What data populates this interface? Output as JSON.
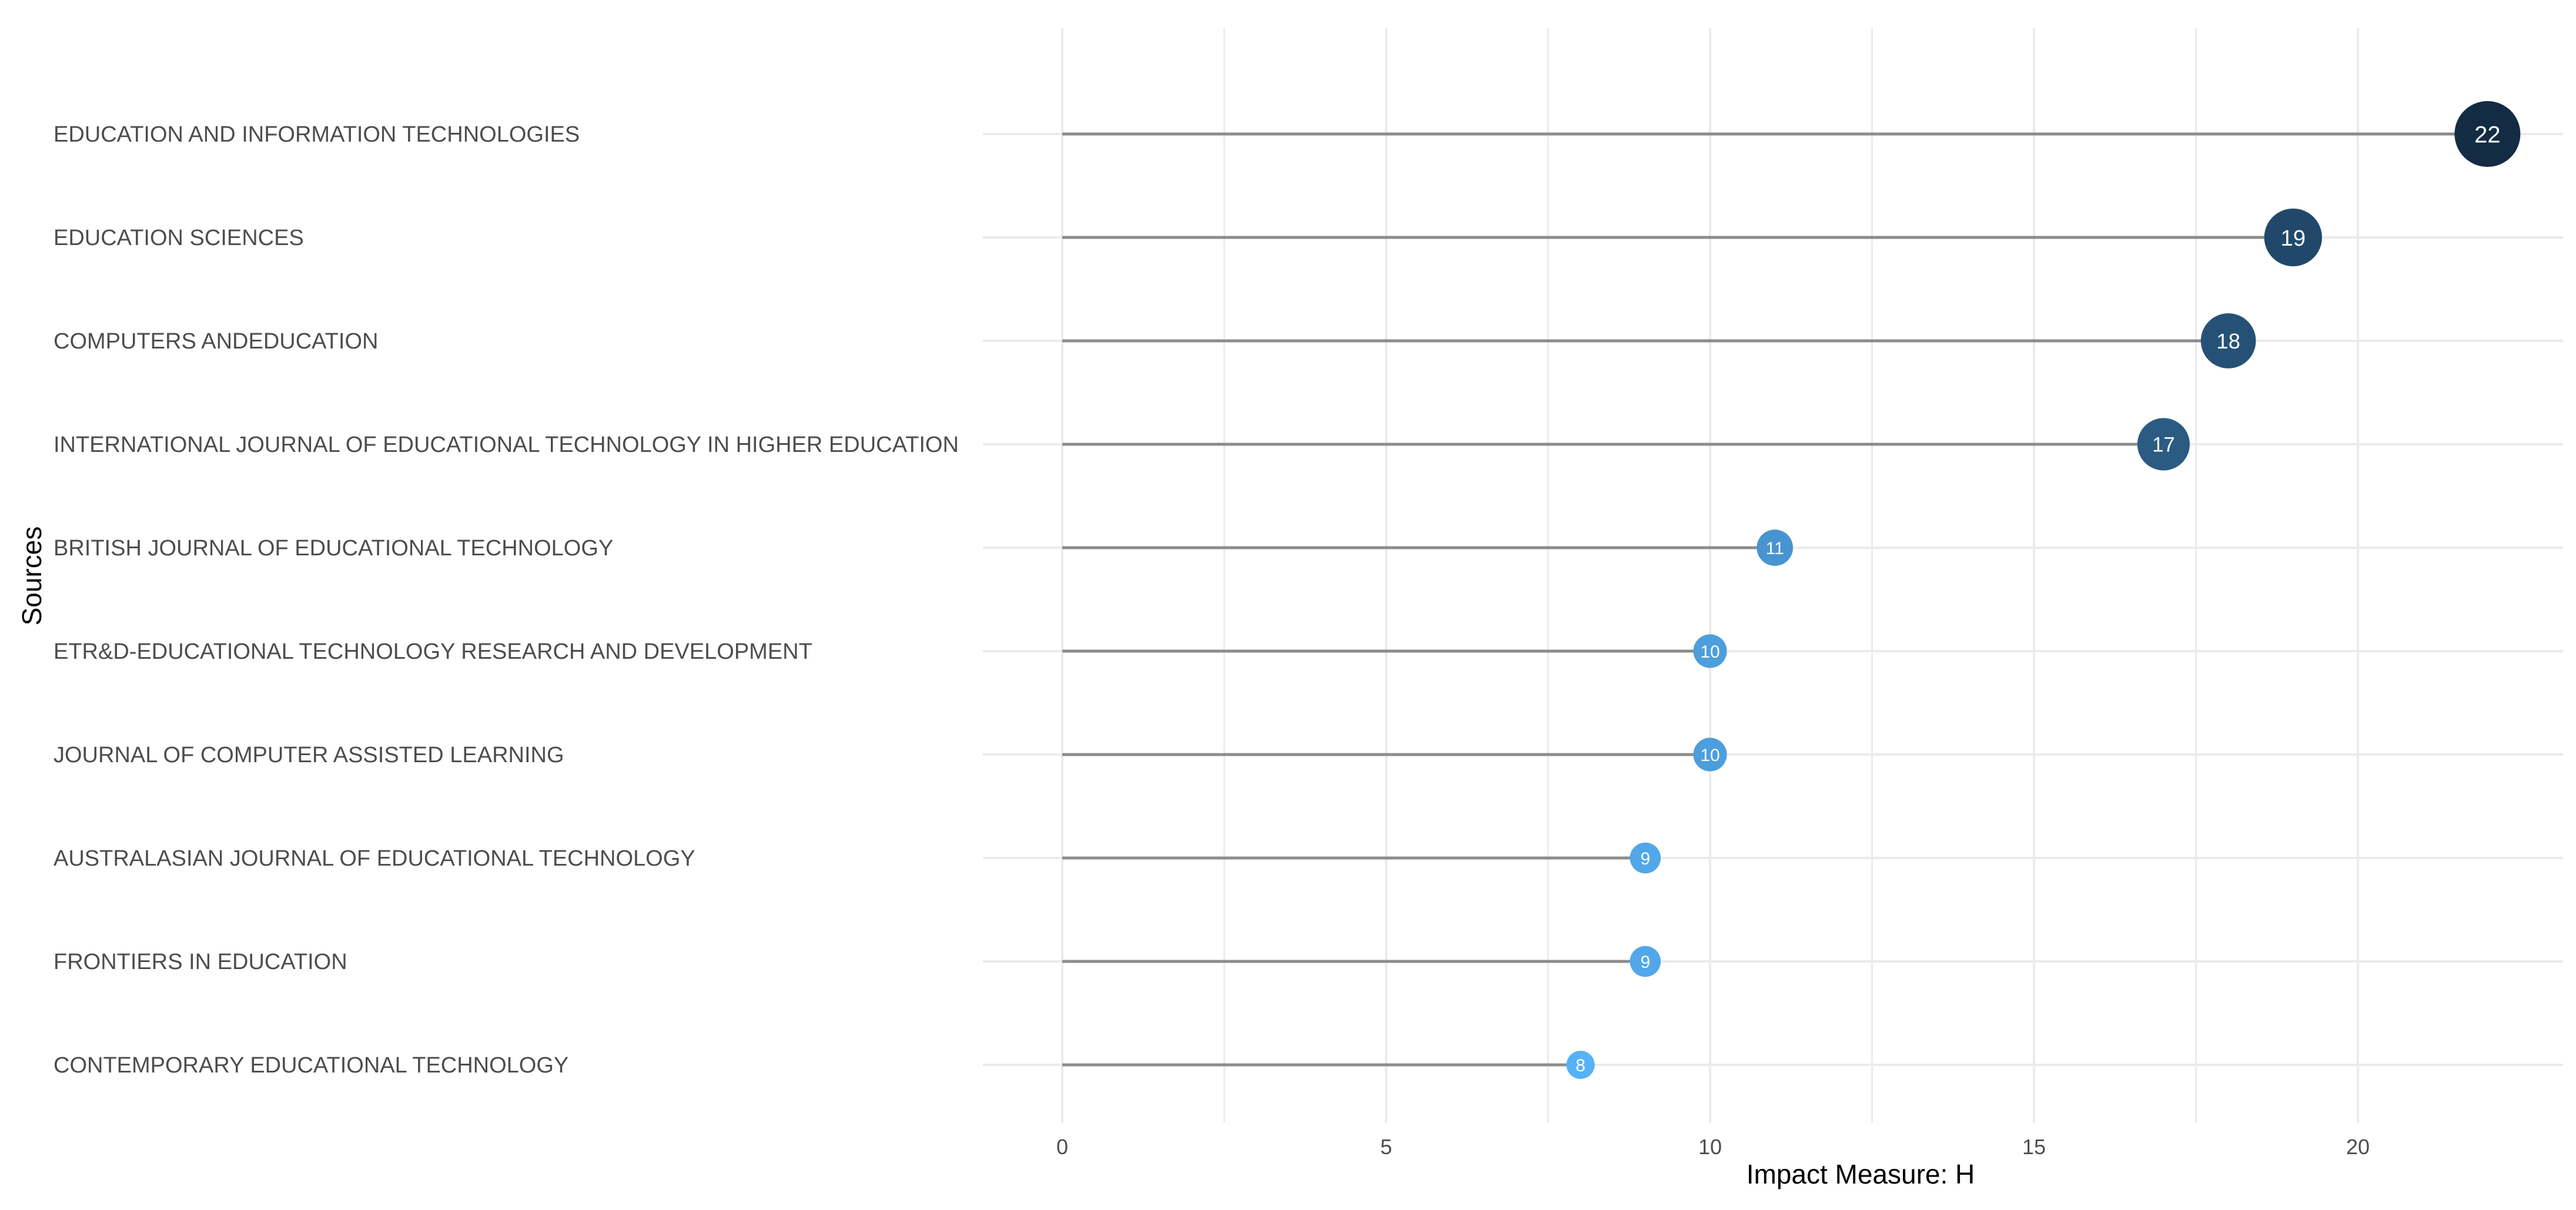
{
  "chart_data": {
    "type": "lollipop",
    "xlabel": "Impact Measure: H",
    "ylabel": "Sources",
    "xlim": [
      0,
      23
    ],
    "xticks": [
      0,
      5,
      10,
      15,
      20
    ],
    "grid": true,
    "legend": "none",
    "categories": [
      "EDUCATION AND INFORMATION TECHNOLOGIES",
      "EDUCATION SCIENCES",
      "COMPUTERS ANDEDUCATION",
      "INTERNATIONAL JOURNAL OF EDUCATIONAL TECHNOLOGY IN HIGHER EDUCATION",
      "BRITISH JOURNAL OF EDUCATIONAL TECHNOLOGY",
      "ETR&D-EDUCATIONAL TECHNOLOGY RESEARCH AND DEVELOPMENT",
      "JOURNAL OF COMPUTER ASSISTED LEARNING",
      "AUSTRALASIAN JOURNAL OF EDUCATIONAL TECHNOLOGY",
      "FRONTIERS IN EDUCATION",
      "CONTEMPORARY EDUCATIONAL TECHNOLOGY"
    ],
    "values": [
      22,
      19,
      18,
      17,
      11,
      10,
      10,
      9,
      9,
      8
    ],
    "value_labels": [
      "22",
      "19",
      "18",
      "17",
      "11",
      "10",
      "10",
      "9",
      "9",
      "8"
    ],
    "color_scale": {
      "low": "#56B1F7",
      "high": "#132B43"
    },
    "colors": {
      "segment": "#8c8c8c",
      "grid": "#ebebeb",
      "label_text": "#ffffff"
    }
  }
}
